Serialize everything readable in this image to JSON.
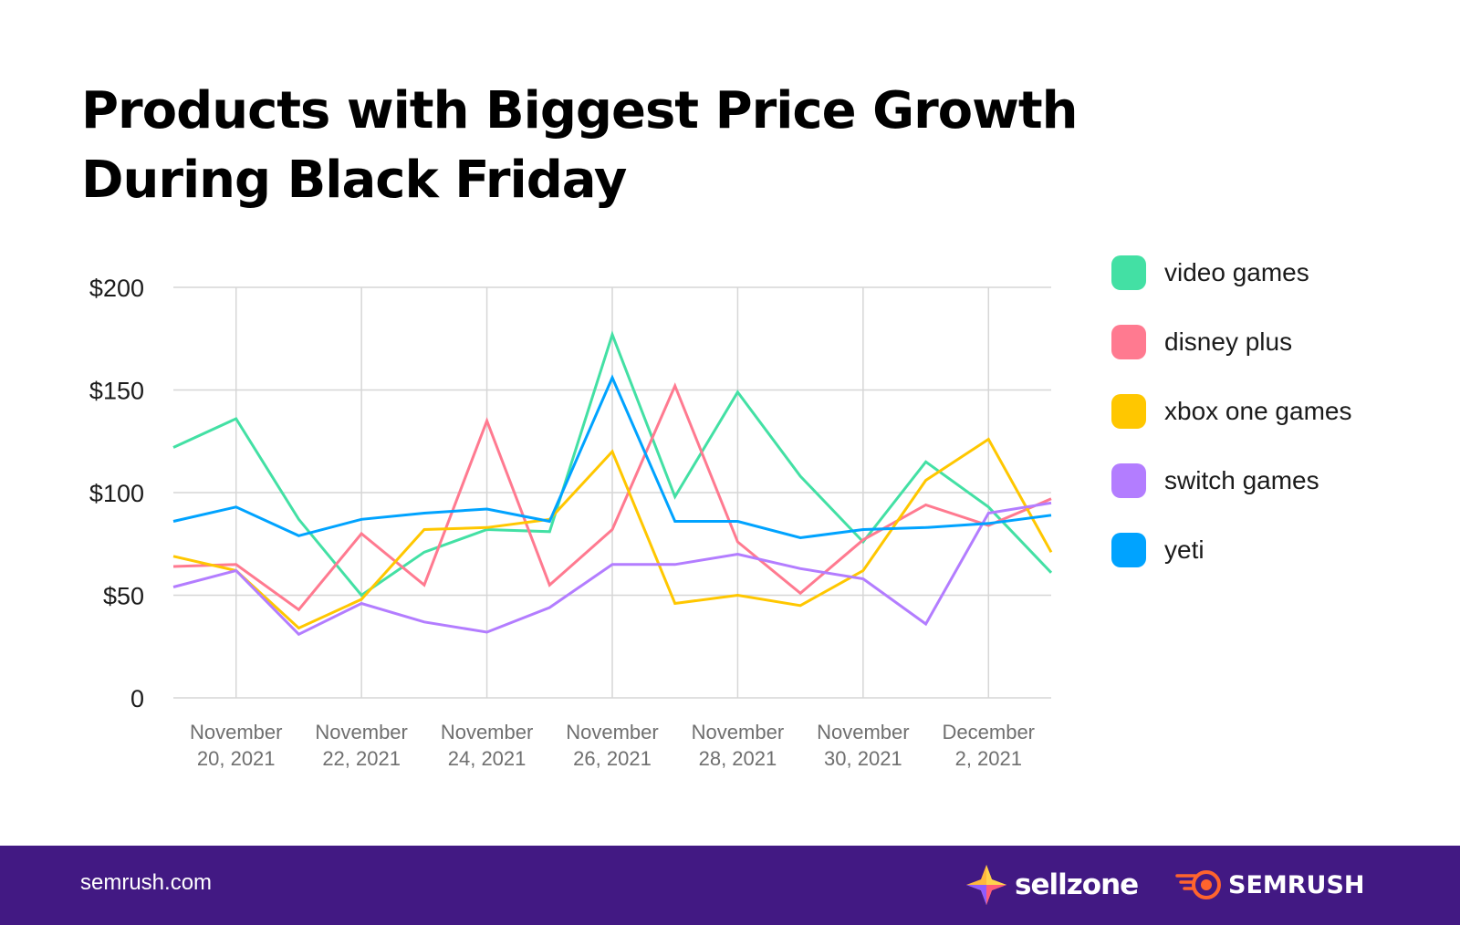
{
  "header": {
    "title_line1": "Products with Biggest Price Growth",
    "title_line2": "During Black Friday"
  },
  "footer": {
    "site": "semrush.com",
    "brand1": "sellzone",
    "brand2": "SEMRUSH",
    "background": "#421983"
  },
  "chart_data": {
    "type": "line",
    "title": "Products with Biggest Price Growth During Black Friday",
    "xlabel": "",
    "ylabel": "",
    "ylim": [
      0,
      200
    ],
    "yticks": [
      0,
      50,
      100,
      150,
      200
    ],
    "ytick_labels": [
      "0",
      "$50",
      "$100",
      "$150",
      "$200"
    ],
    "grid": true,
    "legend_position": "right",
    "x": [
      "November 19, 2021",
      "November 20, 2021",
      "November 21, 2021",
      "November 22, 2021",
      "November 23, 2021",
      "November 24, 2021",
      "November 25, 2021",
      "November 26, 2021",
      "November 27, 2021",
      "November 28, 2021",
      "November 29, 2021",
      "November 30, 2021",
      "December 1, 2021",
      "December 2, 2021",
      "December 3, 2021"
    ],
    "xtick_indices": [
      1,
      3,
      5,
      7,
      9,
      11,
      13
    ],
    "xtick_labels": [
      [
        "November",
        "20, 2021"
      ],
      [
        "November",
        "22, 2021"
      ],
      [
        "November",
        "24, 2021"
      ],
      [
        "November",
        "26, 2021"
      ],
      [
        "November",
        "28, 2021"
      ],
      [
        "November",
        "30, 2021"
      ],
      [
        "December",
        "2, 2021"
      ]
    ],
    "series": [
      {
        "name": "video games",
        "color": "#43e0a4",
        "values": [
          122,
          136,
          87,
          50,
          71,
          82,
          81,
          177,
          98,
          149,
          108,
          76,
          115,
          93,
          61
        ]
      },
      {
        "name": "disney plus",
        "color": "#ff7a90",
        "values": [
          64,
          65,
          43,
          80,
          55,
          135,
          55,
          82,
          152,
          76,
          51,
          77,
          94,
          84,
          97
        ]
      },
      {
        "name": "xbox one games",
        "color": "#ffc700",
        "values": [
          69,
          62,
          34,
          48,
          82,
          83,
          87,
          120,
          46,
          50,
          45,
          62,
          106,
          126,
          71
        ]
      },
      {
        "name": "switch games",
        "color": "#b37dff",
        "values": [
          54,
          62,
          31,
          46,
          37,
          32,
          44,
          65,
          65,
          70,
          63,
          58,
          36,
          90,
          95
        ]
      },
      {
        "name": "yeti",
        "color": "#00a3ff",
        "values": [
          86,
          93,
          79,
          87,
          90,
          92,
          86,
          156,
          86,
          86,
          78,
          82,
          83,
          85,
          89
        ]
      }
    ]
  }
}
